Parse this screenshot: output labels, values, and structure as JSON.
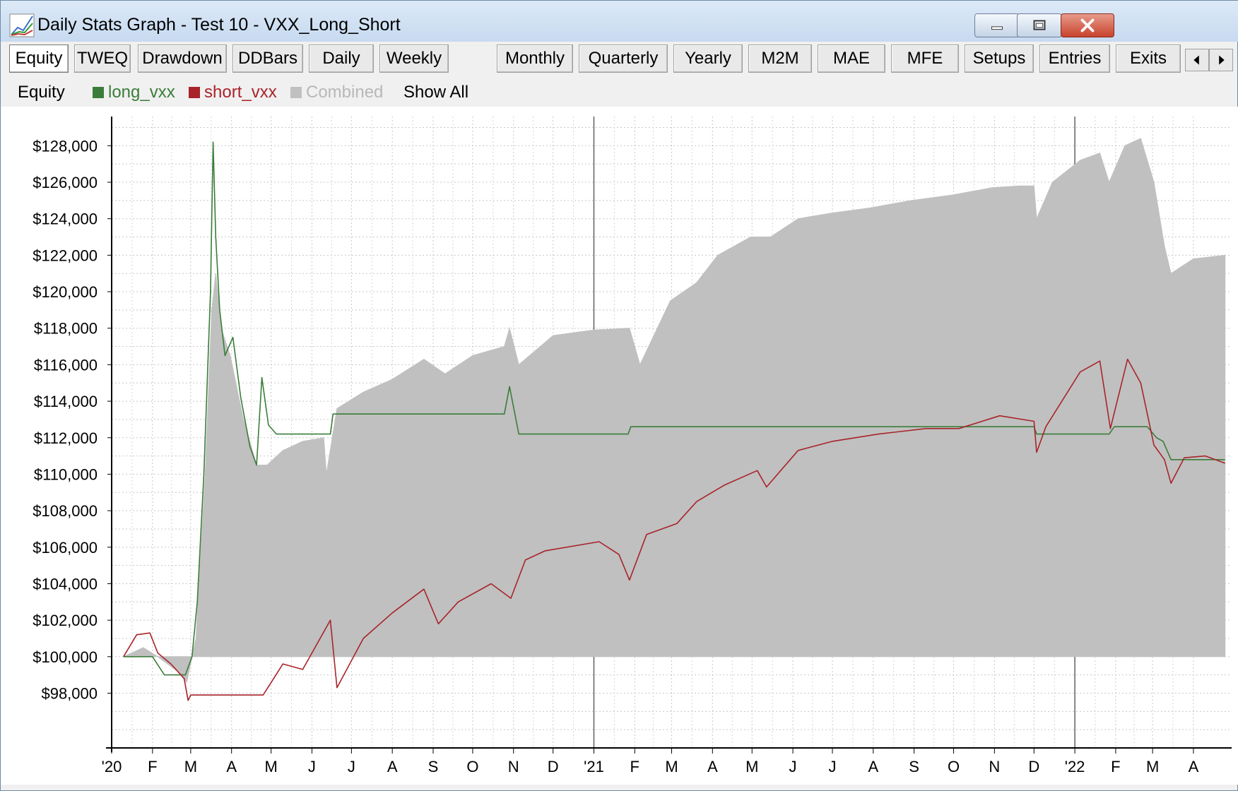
{
  "window": {
    "title": "Daily Stats Graph - Test 10 - VXX_Long_Short"
  },
  "tabs": [
    {
      "label": "Equity",
      "active": true
    },
    {
      "label": "TWEQ"
    },
    {
      "label": "Drawdown"
    },
    {
      "label": "DDBars"
    },
    {
      "label": "Daily"
    },
    {
      "label": "Weekly"
    },
    {
      "label": "Monthly"
    },
    {
      "label": "Quarterly"
    },
    {
      "label": "Yearly"
    },
    {
      "label": "M2M"
    },
    {
      "label": "MAE"
    },
    {
      "label": "MFE"
    },
    {
      "label": "Setups"
    },
    {
      "label": "Entries"
    },
    {
      "label": "Exits"
    }
  ],
  "legend": {
    "title": "Equity",
    "items": [
      {
        "label": "long_vxx",
        "color": "#3a7d3a"
      },
      {
        "label": "short_vxx",
        "color": "#a8242a"
      },
      {
        "label": "Combined",
        "color": "#c0c0c0"
      }
    ],
    "show_all": "Show All"
  },
  "chart_data": {
    "type": "area",
    "y_tick_labels": [
      "$128,000",
      "$126,000",
      "$124,000",
      "$122,000",
      "$120,000",
      "$118,000",
      "$116,000",
      "$114,000",
      "$112,000",
      "$110,000",
      "$108,000",
      "$106,000",
      "$104,000",
      "$102,000",
      "$100,000",
      "$98,000"
    ],
    "y_ticks": [
      128000,
      126000,
      124000,
      122000,
      120000,
      118000,
      116000,
      114000,
      112000,
      110000,
      108000,
      106000,
      104000,
      102000,
      100000,
      98000
    ],
    "ylim": [
      95000,
      129600
    ],
    "x_tick_labels": [
      "'20",
      "F",
      "M",
      "A",
      "M",
      "J",
      "J",
      "A",
      "S",
      "O",
      "N",
      "D",
      "'21",
      "F",
      "M",
      "A",
      "M",
      "J",
      "J",
      "A",
      "S",
      "O",
      "N",
      "D",
      "'22",
      "F",
      "M",
      "A"
    ],
    "x_range": [
      "2020-01-01",
      "2022-04-30"
    ],
    "grid": true,
    "series": [
      {
        "name": "Combined",
        "style": "filled-area",
        "color": "#c0c0c0",
        "x": [
          "2020-01-10",
          "2020-01-25",
          "2020-02-05",
          "2020-02-20",
          "2020-02-27",
          "2020-03-05",
          "2020-03-12",
          "2020-03-17",
          "2020-03-20",
          "2020-03-24",
          "2020-03-31",
          "2020-04-10",
          "2020-04-20",
          "2020-04-28",
          "2020-05-10",
          "2020-05-25",
          "2020-06-10",
          "2020-06-12",
          "2020-06-20",
          "2020-07-10",
          "2020-08-01",
          "2020-08-25",
          "2020-09-10",
          "2020-10-01",
          "2020-10-25",
          "2020-10-29",
          "2020-11-05",
          "2020-12-01",
          "2021-01-01",
          "2021-01-28",
          "2021-02-05",
          "2021-02-28",
          "2021-03-20",
          "2021-04-05",
          "2021-04-30",
          "2021-05-15",
          "2021-06-05",
          "2021-06-30",
          "2021-07-30",
          "2021-08-30",
          "2021-09-30",
          "2021-10-30",
          "2021-11-20",
          "2021-12-01",
          "2021-12-03",
          "2021-12-15",
          "2022-01-05",
          "2022-01-20",
          "2022-01-27",
          "2022-02-08",
          "2022-02-20",
          "2022-03-02",
          "2022-03-10",
          "2022-03-15",
          "2022-04-01",
          "2022-04-25"
        ],
        "values": [
          100000,
          100500,
          100000,
          99200,
          98600,
          101000,
          110000,
          119000,
          121000,
          118000,
          116500,
          113000,
          110500,
          110500,
          111300,
          111800,
          112000,
          110000,
          113600,
          114500,
          115200,
          116300,
          115500,
          116500,
          117000,
          118000,
          116000,
          117600,
          117900,
          118000,
          116000,
          119500,
          120500,
          122000,
          123000,
          123000,
          124000,
          124300,
          124600,
          125000,
          125300,
          125700,
          125800,
          125800,
          124000,
          126000,
          127200,
          127600,
          126000,
          128000,
          128400,
          126000,
          122500,
          121000,
          121800,
          122000
        ]
      },
      {
        "name": "long_vxx",
        "style": "line",
        "color": "#3a7d3a",
        "x": [
          "2020-01-10",
          "2020-02-01",
          "2020-02-10",
          "2020-02-26",
          "2020-03-02",
          "2020-03-06",
          "2020-03-11",
          "2020-03-16",
          "2020-03-18",
          "2020-03-20",
          "2020-03-23",
          "2020-03-27",
          "2020-04-02",
          "2020-04-08",
          "2020-04-15",
          "2020-04-20",
          "2020-04-24",
          "2020-04-29",
          "2020-05-05",
          "2020-06-15",
          "2020-06-17",
          "2020-10-25",
          "2020-10-29",
          "2020-11-05",
          "2021-01-27",
          "2021-01-29",
          "2021-12-01",
          "2021-12-03",
          "2022-01-27",
          "2022-01-31",
          "2022-02-25",
          "2022-03-04",
          "2022-03-09",
          "2022-03-15",
          "2022-04-25"
        ],
        "values": [
          100000,
          100000,
          99000,
          99000,
          100000,
          103000,
          110000,
          120000,
          128200,
          123000,
          119000,
          116500,
          117500,
          114200,
          111500,
          110500,
          115300,
          112700,
          112200,
          112200,
          113300,
          113300,
          114800,
          112200,
          112200,
          112600,
          112600,
          112200,
          112200,
          112600,
          112600,
          112000,
          111800,
          110800,
          110800
        ]
      },
      {
        "name": "short_vxx",
        "style": "line",
        "color": "#a8242a",
        "x": [
          "2020-01-10",
          "2020-01-20",
          "2020-01-30",
          "2020-02-05",
          "2020-02-15",
          "2020-02-25",
          "2020-02-28",
          "2020-03-01",
          "2020-04-25",
          "2020-05-10",
          "2020-05-25",
          "2020-06-15",
          "2020-06-20",
          "2020-07-10",
          "2020-08-01",
          "2020-08-25",
          "2020-09-05",
          "2020-09-20",
          "2020-10-15",
          "2020-10-30",
          "2020-11-10",
          "2020-11-25",
          "2021-01-05",
          "2021-01-20",
          "2021-01-28",
          "2021-02-10",
          "2021-03-05",
          "2021-03-20",
          "2021-04-10",
          "2021-05-05",
          "2021-05-12",
          "2021-06-05",
          "2021-07-01",
          "2021-08-05",
          "2021-09-10",
          "2021-10-05",
          "2021-11-05",
          "2021-12-01",
          "2021-12-03",
          "2021-12-10",
          "2022-01-05",
          "2022-01-20",
          "2022-01-28",
          "2022-02-10",
          "2022-02-20",
          "2022-03-02",
          "2022-03-10",
          "2022-03-15",
          "2022-03-25",
          "2022-04-10",
          "2022-04-25"
        ],
        "values": [
          100000,
          101200,
          101300,
          100200,
          99600,
          98800,
          97600,
          97900,
          97900,
          99600,
          99300,
          102000,
          98300,
          101000,
          102400,
          103700,
          101800,
          103000,
          104000,
          103200,
          105300,
          105800,
          106300,
          105600,
          104200,
          106700,
          107300,
          108500,
          109400,
          110200,
          109300,
          111300,
          111800,
          112200,
          112500,
          112500,
          113200,
          112900,
          111200,
          112600,
          115600,
          116200,
          112500,
          116300,
          115000,
          111600,
          110800,
          109500,
          110900,
          111000,
          110600
        ]
      }
    ]
  }
}
